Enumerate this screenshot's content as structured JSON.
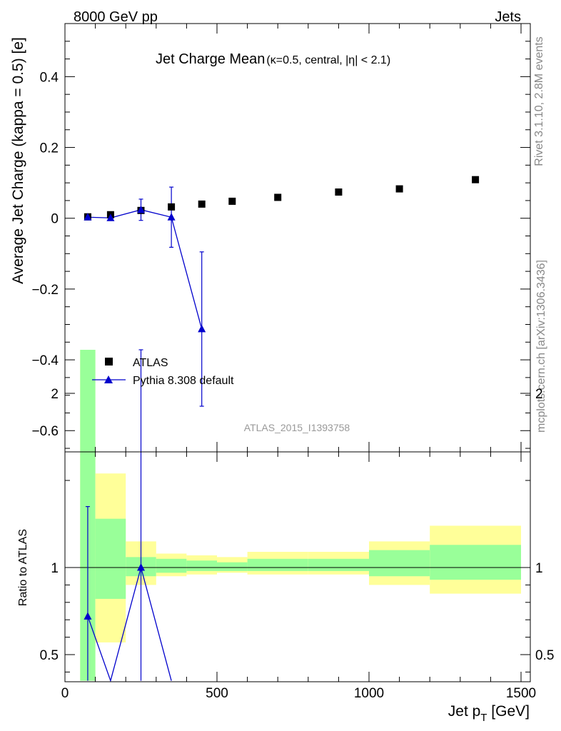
{
  "header": {
    "left": "8000 GeV pp",
    "right": "Jets"
  },
  "side": {
    "rivet": "Rivet 3.1.10,  2.8M events",
    "mcplots": "mcplots.cern.ch [arXiv:1306.3436]"
  },
  "watermark": "ATLAS_2015_I1393758",
  "colors": {
    "mc": "#0000cc",
    "band_inner": "#99ff99",
    "band_outer": "#ffff99",
    "data": "#000000"
  },
  "chart_data": [
    {
      "type": "scatter",
      "title_main": "Jet Charge Mean",
      "title_sub": "(κ=0.5, central, |η| < 2.1)",
      "ylabel": "Average Jet Charge (kappa = 0.5) [e]",
      "xlim": [
        0,
        1500
      ],
      "ylim": [
        -0.66,
        0.55
      ],
      "yticks": [
        -0.6,
        -0.4,
        -0.2,
        0,
        0.2,
        0.4
      ],
      "ytick_labels": [
        "−0.6",
        "−0.4",
        "−0.2",
        "0",
        "0.2",
        "0.4"
      ],
      "legend": [
        "ATLAS",
        "Pythia 8.308 default"
      ],
      "series": [
        {
          "name": "ATLAS",
          "x": [
            75,
            150,
            250,
            350,
            450,
            550,
            700,
            900,
            1100,
            1350
          ],
          "y": [
            0.004,
            0.01,
            0.022,
            0.032,
            0.04,
            0.048,
            0.059,
            0.074,
            0.083,
            0.109
          ]
        },
        {
          "name": "Pythia 8.308 default",
          "x": [
            75,
            150,
            250,
            350,
            450
          ],
          "y": [
            0.003,
            0.001,
            0.024,
            0.003,
            -0.313
          ],
          "yerr": [
            0.003,
            0.003,
            0.03,
            0.085,
            0.218
          ]
        }
      ]
    },
    {
      "type": "line",
      "ylabel": "Ratio to ATLAS",
      "xlabel": "Jet p",
      "xlabel_sub": "T",
      "xlabel_unit": " [GeV]",
      "xlim": [
        0,
        1500
      ],
      "ylim": [
        0.35,
        2.25
      ],
      "yticks": [
        0.5,
        1,
        2
      ],
      "ytick_labels": [
        "0.5",
        "1",
        "2"
      ],
      "xticks": [
        0,
        500,
        1000,
        1500
      ],
      "xtick_labels": [
        "0",
        "500",
        "1000",
        "1500"
      ],
      "bins": [
        {
          "lo": 50,
          "hi": 100,
          "outer": [
            0.35,
            2.25
          ],
          "inner": [
            0.35,
            2.25
          ]
        },
        {
          "lo": 100,
          "hi": 200,
          "outer": [
            0.57,
            1.54
          ],
          "inner": [
            0.82,
            1.28
          ]
        },
        {
          "lo": 200,
          "hi": 300,
          "outer": [
            0.9,
            1.15
          ],
          "inner": [
            0.95,
            1.06
          ]
        },
        {
          "lo": 300,
          "hi": 400,
          "outer": [
            0.95,
            1.08
          ],
          "inner": [
            0.97,
            1.05
          ]
        },
        {
          "lo": 400,
          "hi": 500,
          "outer": [
            0.96,
            1.07
          ],
          "inner": [
            0.98,
            1.04
          ]
        },
        {
          "lo": 500,
          "hi": 600,
          "outer": [
            0.97,
            1.06
          ],
          "inner": [
            0.98,
            1.03
          ]
        },
        {
          "lo": 600,
          "hi": 800,
          "outer": [
            0.96,
            1.09
          ],
          "inner": [
            0.98,
            1.05
          ]
        },
        {
          "lo": 800,
          "hi": 1000,
          "outer": [
            0.96,
            1.09
          ],
          "inner": [
            0.98,
            1.05
          ]
        },
        {
          "lo": 1000,
          "hi": 1200,
          "outer": [
            0.9,
            1.15
          ],
          "inner": [
            0.95,
            1.1
          ]
        },
        {
          "lo": 1200,
          "hi": 1500,
          "outer": [
            0.85,
            1.24
          ],
          "inner": [
            0.93,
            1.13
          ]
        }
      ],
      "series": [
        {
          "name": "Pythia 8.308 default",
          "x": [
            75,
            150,
            250,
            350
          ],
          "y": [
            0.72,
            0.1,
            1.0,
            0.09
          ],
          "yerr_low": [
            0.72,
            0,
            0.8,
            0
          ],
          "yerr_high": [
            0.63,
            0,
            1.25,
            0
          ]
        }
      ]
    }
  ]
}
